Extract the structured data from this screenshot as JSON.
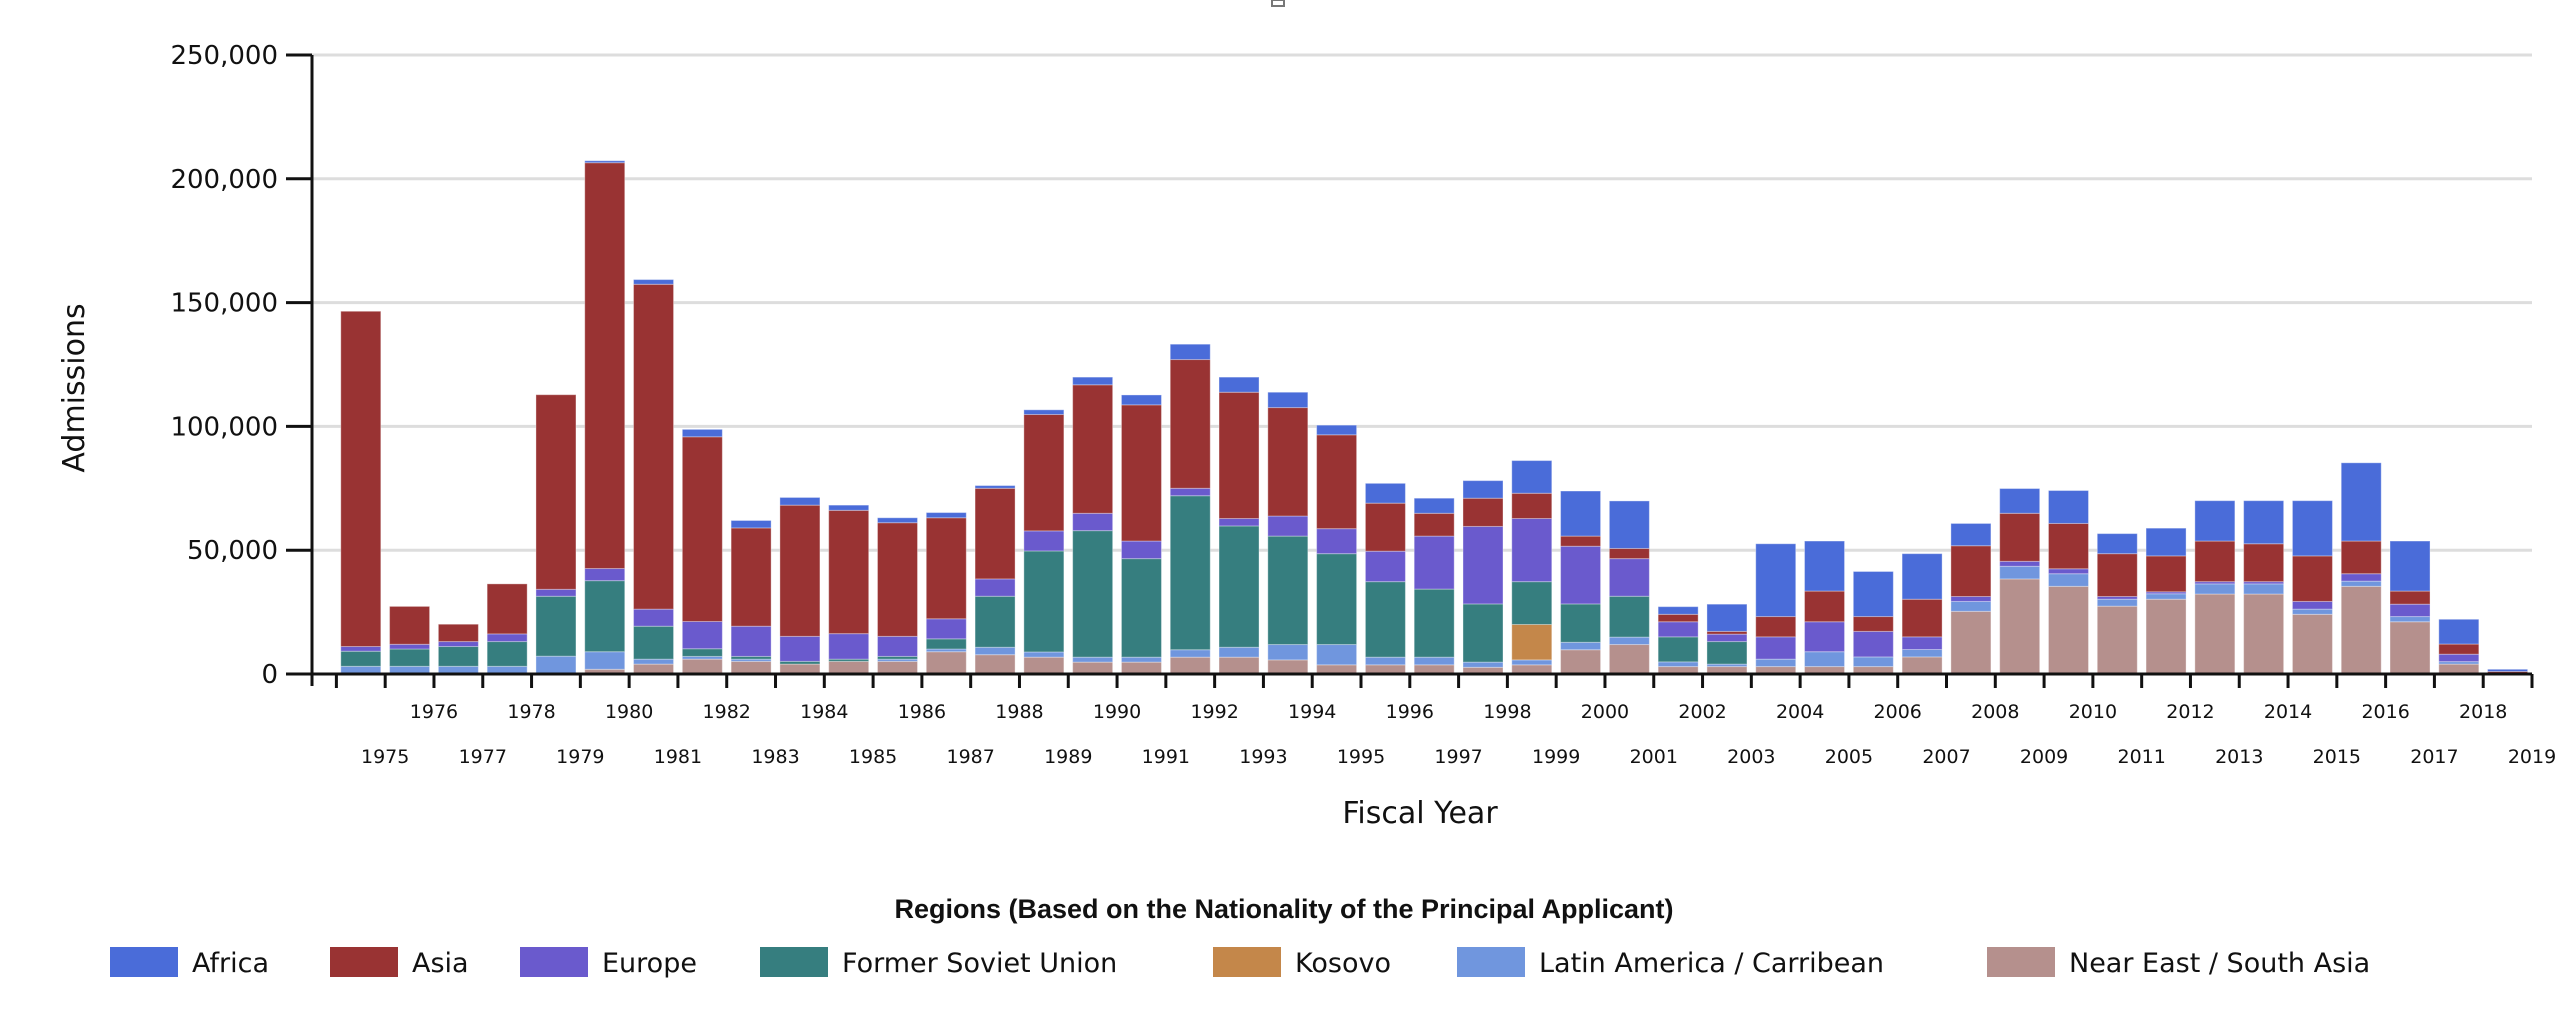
{
  "chart_data": {
    "type": "bar",
    "stacked": true,
    "title": "",
    "xlabel": "Fiscal Year",
    "ylabel": "Admissions",
    "ylim": [
      0,
      250000
    ],
    "yticks": [
      0,
      50000,
      100000,
      150000,
      200000,
      250000
    ],
    "ytick_labels": [
      "0",
      "50,000",
      "100,000",
      "150,000",
      "200,000",
      "250,000"
    ],
    "grid": true,
    "legend_title": "Regions (Based on the Nationality of the Principal Applicant)",
    "legend_position": "bottom",
    "categories": [
      "1975",
      "1976",
      "1977",
      "1978",
      "1979",
      "1980",
      "1981",
      "1982",
      "1983",
      "1984",
      "1985",
      "1986",
      "1987",
      "1988",
      "1989",
      "1990",
      "1991",
      "1992",
      "1993",
      "1994",
      "1995",
      "1996",
      "1997",
      "1998",
      "1999",
      "2000",
      "2001",
      "2002",
      "2003",
      "2004",
      "2005",
      "2006",
      "2007",
      "2008",
      "2009",
      "2010",
      "2011",
      "2012",
      "2013",
      "2014",
      "2015",
      "2016",
      "2017",
      "2018",
      "2019"
    ],
    "series": [
      {
        "name": "Near East / South Asia",
        "color": "#B5908D",
        "values": [
          0,
          0,
          0,
          0,
          0,
          1900,
          4000,
          6000,
          5100,
          4000,
          5100,
          5100,
          9000,
          7800,
          6800,
          4800,
          4800,
          6800,
          6800,
          5700,
          3700,
          3700,
          3700,
          2700,
          3700,
          9800,
          11900,
          3000,
          3000,
          3000,
          3000,
          3000,
          6900,
          25300,
          38400,
          35400,
          27400,
          30200,
          32300,
          32300,
          24100,
          35400,
          21100,
          4000,
          200
        ]
      },
      {
        "name": "Latin America / Carribean",
        "color": "#7096DE",
        "values": [
          3100,
          3100,
          3100,
          3100,
          7200,
          7100,
          2000,
          1100,
          900,
          0,
          0,
          900,
          1100,
          3000,
          2100,
          2000,
          2000,
          3000,
          4000,
          6200,
          8200,
          3100,
          3100,
          2100,
          2000,
          3000,
          3000,
          1900,
          1000,
          3000,
          6000,
          3900,
          3000,
          4000,
          5100,
          5100,
          2800,
          2200,
          4100,
          4100,
          2100,
          2100,
          2100,
          1000,
          0
        ]
      },
      {
        "name": "Kosovo",
        "color": "#C4874A",
        "values": [
          0,
          0,
          0,
          0,
          0,
          0,
          0,
          0,
          0,
          0,
          0,
          0,
          0,
          0,
          0,
          0,
          0,
          0,
          0,
          0,
          0,
          0,
          0,
          0,
          14300,
          0,
          0,
          0,
          0,
          0,
          0,
          0,
          0,
          0,
          0,
          0,
          0,
          0,
          0,
          0,
          0,
          0,
          0,
          0,
          0
        ]
      },
      {
        "name": "Former Soviet Union",
        "color": "#367E7F",
        "values": [
          6100,
          7000,
          8000,
          10000,
          24200,
          28700,
          13300,
          3100,
          1100,
          1100,
          900,
          1100,
          4100,
          20600,
          40800,
          51100,
          39800,
          62200,
          49000,
          43800,
          36700,
          30500,
          27500,
          23500,
          17300,
          15500,
          16500,
          10100,
          9100,
          0,
          0,
          0,
          0,
          0,
          0,
          0,
          0,
          0,
          0,
          0,
          0,
          0,
          0,
          0,
          0
        ]
      },
      {
        "name": "Europe",
        "color": "#6A5ACD",
        "values": [
          1900,
          1900,
          2000,
          3100,
          2800,
          4900,
          6900,
          11000,
          12200,
          10100,
          10300,
          8100,
          8100,
          7000,
          8100,
          7000,
          7100,
          3000,
          3000,
          8100,
          10100,
          12300,
          21400,
          31300,
          25500,
          23300,
          15200,
          6100,
          3000,
          9000,
          12100,
          10300,
          5100,
          2000,
          2000,
          2000,
          1100,
          800,
          900,
          900,
          3100,
          3000,
          5000,
          3000,
          0
        ]
      },
      {
        "name": "Asia",
        "color": "#993333",
        "values": [
          135400,
          15300,
          7000,
          20200,
          78600,
          163900,
          131200,
          74600,
          39700,
          53000,
          49800,
          45900,
          40800,
          36600,
          47000,
          51900,
          55000,
          52000,
          51000,
          43800,
          37900,
          19400,
          9200,
          11400,
          10200,
          4100,
          4100,
          3000,
          1100,
          8200,
          12400,
          6000,
          15200,
          20500,
          19400,
          18300,
          17300,
          14500,
          16400,
          15300,
          18400,
          13200,
          5300,
          4100,
          800
        ]
      },
      {
        "name": "Africa",
        "color": "#4A6CD9",
        "values": [
          0,
          0,
          0,
          0,
          0,
          800,
          1900,
          3000,
          3000,
          3100,
          2100,
          2000,
          2100,
          1100,
          1900,
          3100,
          4000,
          6200,
          6100,
          6200,
          3900,
          8000,
          6100,
          7100,
          13200,
          18200,
          19200,
          3100,
          11000,
          29400,
          20200,
          18200,
          18400,
          9000,
          10000,
          13300,
          8100,
          11200,
          16300,
          17400,
          22300,
          31600,
          20200,
          10000,
          900
        ]
      }
    ]
  },
  "legend_items": [
    {
      "label": "Africa",
      "color": "#4A6CD9"
    },
    {
      "label": "Asia",
      "color": "#993333"
    },
    {
      "label": "Europe",
      "color": "#6A5ACD"
    },
    {
      "label": "Former Soviet Union",
      "color": "#367E7F"
    },
    {
      "label": "Kosovo",
      "color": "#C4874A"
    },
    {
      "label": "Latin America / Carribean",
      "color": "#7096DE"
    },
    {
      "label": "Near East / South Asia",
      "color": "#B5908D"
    }
  ],
  "colors": {
    "axis": "#111111",
    "grid": "#dddddd"
  }
}
